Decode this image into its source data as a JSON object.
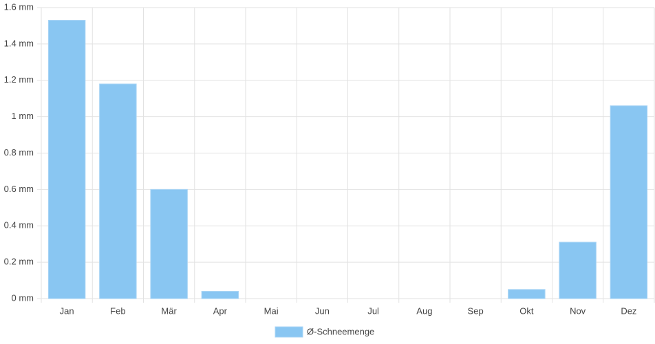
{
  "chart_data": {
    "type": "bar",
    "categories": [
      "Jan",
      "Feb",
      "Mär",
      "Apr",
      "Mai",
      "Jun",
      "Jul",
      "Aug",
      "Sep",
      "Okt",
      "Nov",
      "Dez"
    ],
    "series": [
      {
        "name": "Ø-Schneemenge",
        "color": "#89c6f2",
        "values": [
          1.53,
          1.18,
          0.6,
          0.04,
          0,
          0,
          0,
          0,
          0,
          0.05,
          0.31,
          1.06
        ]
      }
    ],
    "ylim": [
      0,
      1.6
    ],
    "yticks": [
      {
        "value": 0,
        "label": "0 mm"
      },
      {
        "value": 0.2,
        "label": "0.2 mm"
      },
      {
        "value": 0.4,
        "label": "0.4 mm"
      },
      {
        "value": 0.6,
        "label": "0.6 mm"
      },
      {
        "value": 0.8,
        "label": "0.8 mm"
      },
      {
        "value": 1,
        "label": "1 mm"
      },
      {
        "value": 1.2,
        "label": "1.2 mm"
      },
      {
        "value": 1.4,
        "label": "1.4 mm"
      },
      {
        "value": 1.6,
        "label": "1.6 mm"
      }
    ],
    "grid": true,
    "legend": "bottom"
  }
}
